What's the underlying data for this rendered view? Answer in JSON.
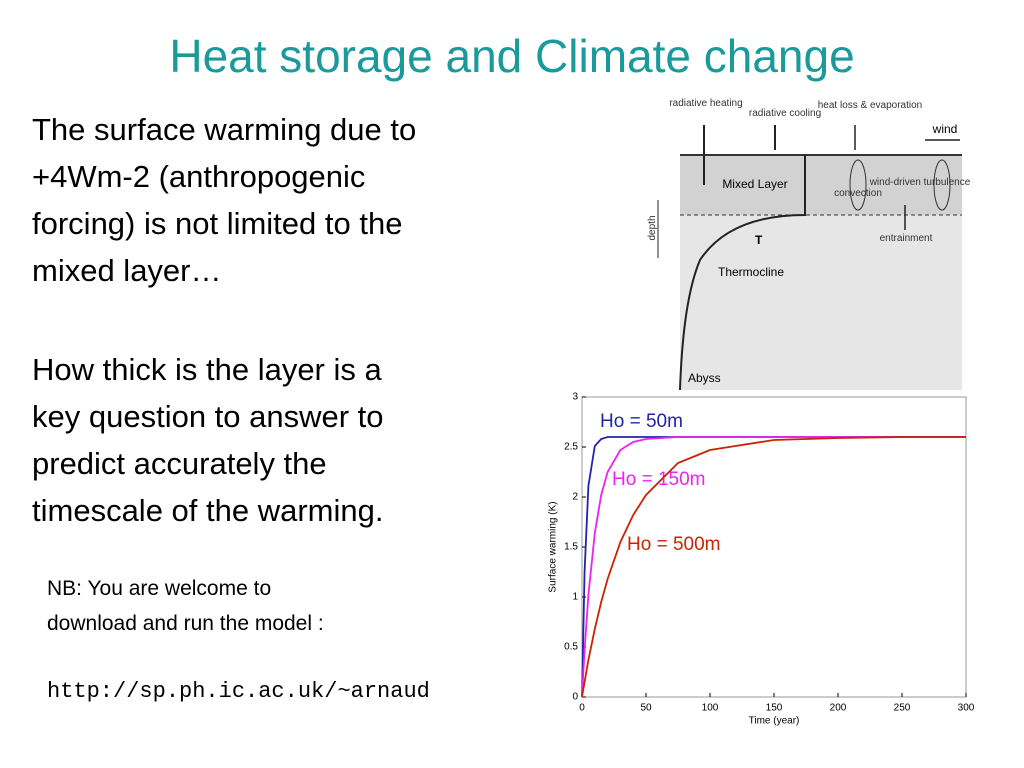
{
  "header": {
    "title": "Heat storage and Climate change"
  },
  "body": {
    "paragraphs": [
      [
        "The surface warming due to",
        "+4Wm-2 (anthropogenic",
        "forcing) is not limited to the",
        "mixed layer…"
      ],
      [
        "How thick is the layer is a",
        "key question to answer to",
        "predict accurately the",
        "timescale of the warming."
      ]
    ],
    "note": [
      "NB: You are welcome to",
      "download and run the model :"
    ],
    "url": "http://sp.ph.ic.ac.uk/~arnaud"
  },
  "diagram": {
    "labels": [
      "radiative heating",
      "radiative cooling",
      "heat loss & evaporation",
      "wind",
      "Mixed Layer",
      "convection",
      "wind-driven turbulence",
      "entrainment",
      "depth",
      "T",
      "Thermocline",
      "Abyss"
    ]
  },
  "chart_data": {
    "type": "line",
    "xlabel": "Time (year)",
    "ylabel": "Surface warming (K)",
    "x": [
      0,
      2,
      5,
      10,
      15,
      20,
      30,
      40,
      50,
      75,
      100,
      150,
      200,
      250,
      300
    ],
    "series": [
      {
        "name": "Ho = 50m",
        "color": "#2222aa",
        "values": [
          0,
          1.25,
          2.11,
          2.51,
          2.58,
          2.6,
          2.6,
          2.6,
          2.6,
          2.6,
          2.6,
          2.6,
          2.6,
          2.6,
          2.6
        ]
      },
      {
        "name": "Ho = 150m",
        "color": "#ee22ee",
        "values": [
          0,
          0.47,
          1.02,
          1.64,
          2.02,
          2.25,
          2.47,
          2.55,
          2.58,
          2.6,
          2.6,
          2.6,
          2.6,
          2.6,
          2.6
        ]
      },
      {
        "name": "Ho = 500m",
        "color": "#cc2200",
        "values": [
          0,
          0.15,
          0.37,
          0.68,
          0.95,
          1.18,
          1.55,
          1.82,
          2.02,
          2.34,
          2.47,
          2.57,
          2.59,
          2.6,
          2.6
        ]
      }
    ],
    "xlim": [
      0,
      300
    ],
    "xticks": [
      0,
      50,
      100,
      150,
      200,
      250,
      300
    ],
    "ylim": [
      0,
      3
    ],
    "yticks": [
      0,
      0.5,
      1,
      1.5,
      2,
      2.5,
      3
    ]
  }
}
